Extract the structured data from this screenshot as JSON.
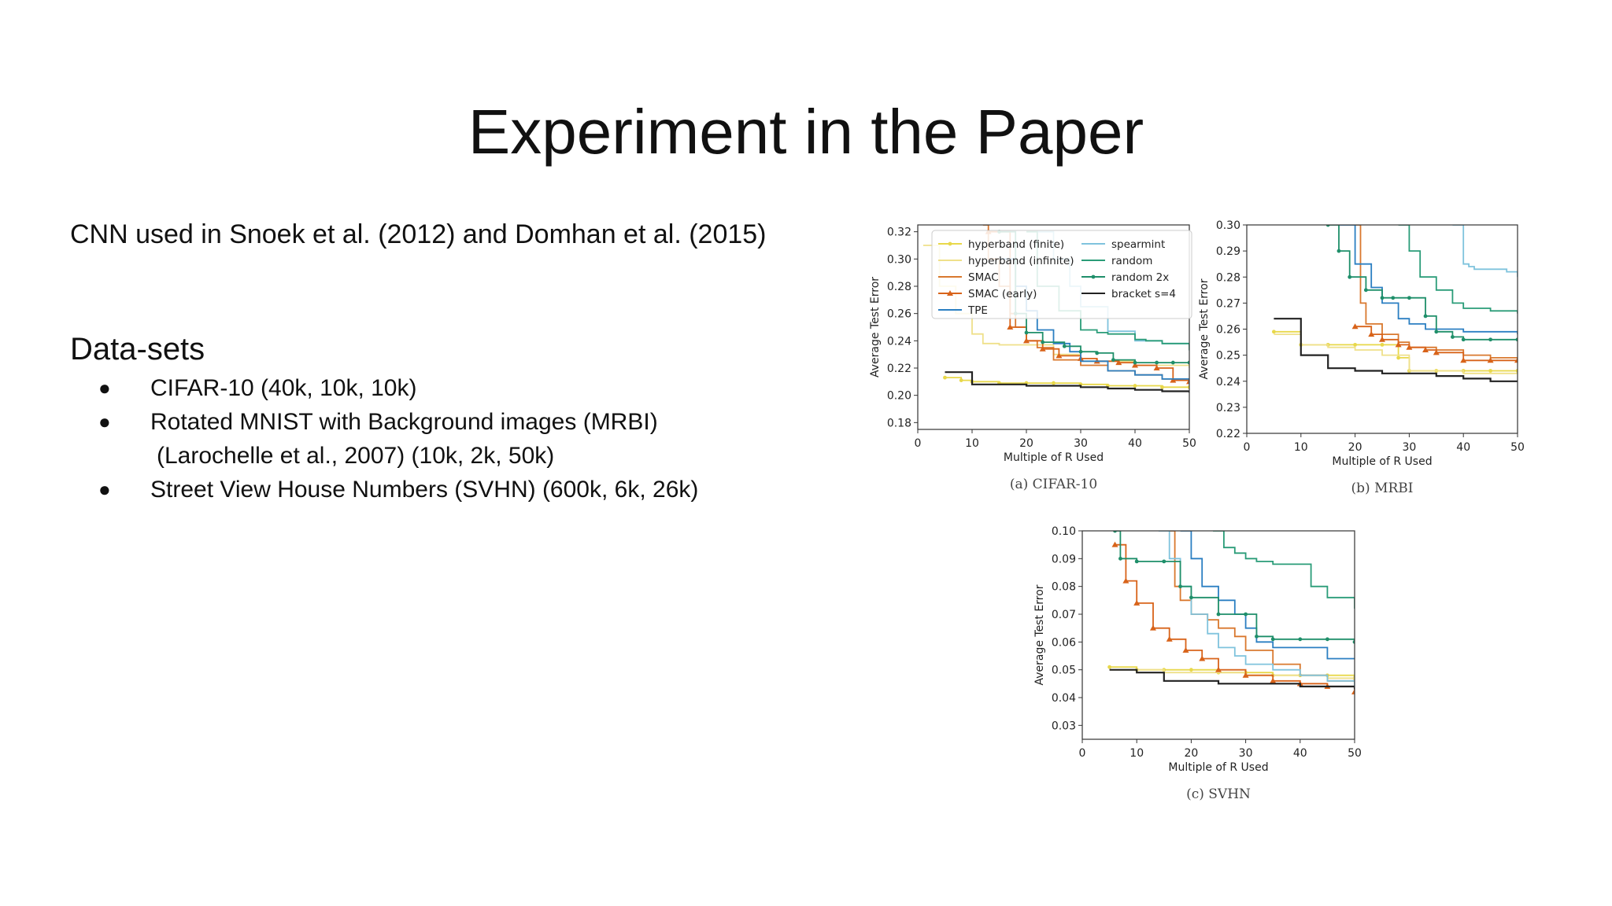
{
  "slide": {
    "title": "Experiment in the Paper",
    "subtitle": "CNN used in Snoek et al. (2012) and Domhan et al. (2015)",
    "datasets_heading": "Data-sets",
    "bullets": [
      {
        "text": "CIFAR-10 (40k, 10k, 10k)"
      },
      {
        "text": "Rotated MNIST with Background images (MRBI)",
        "continuation": "(Larochelle et al., 2007) (10k, 2k, 50k)"
      },
      {
        "text": "Street View House Numbers (SVHN) (600k, 6k, 26k)"
      }
    ]
  },
  "colors": {
    "hyperband_finite": "#e8d84a",
    "hyperband_infinite": "#efe08a",
    "SMAC": "#d9782e",
    "SMAC_early": "#d8631a",
    "TPE": "#2b7fc2",
    "spearmint": "#7fc3dd",
    "random": "#2a9c78",
    "random_2x": "#1f8f6a",
    "bracket": "#222222"
  },
  "chart_data": [
    {
      "type": "line",
      "caption": "(a) CIFAR-10",
      "xlabel": "Multiple of R Used",
      "ylabel": "Average Test Error",
      "xlim": [
        0,
        50
      ],
      "ylim": [
        0.175,
        0.325
      ],
      "xticks": [
        0,
        10,
        20,
        30,
        40,
        50
      ],
      "yticks": [
        0.18,
        0.2,
        0.22,
        0.24,
        0.26,
        0.28,
        0.3,
        0.32
      ],
      "ytick_decimals": 2,
      "legend": true,
      "legend_position": "top",
      "series": [
        {
          "name": "hyperband (finite)",
          "color_key": "hyperband_finite",
          "marker": "dot",
          "x": [
            5,
            8,
            10,
            15,
            20,
            25,
            30,
            35,
            40,
            45,
            50
          ],
          "y": [
            0.213,
            0.211,
            0.21,
            0.209,
            0.209,
            0.209,
            0.208,
            0.207,
            0.207,
            0.206,
            0.206
          ]
        },
        {
          "name": "hyperband (infinite)",
          "color_key": "hyperband_infinite",
          "x": [
            1,
            4,
            7,
            10,
            12,
            15,
            20,
            25,
            30,
            40,
            50
          ],
          "y": [
            0.31,
            0.28,
            0.26,
            0.245,
            0.238,
            0.237,
            0.237,
            0.23,
            0.225,
            0.222,
            0.22
          ]
        },
        {
          "name": "SMAC",
          "color_key": "SMAC",
          "x": [
            12,
            13,
            15,
            17,
            18,
            20,
            22,
            25,
            30,
            35,
            40,
            45,
            50
          ],
          "y": [
            0.325,
            0.3,
            0.28,
            0.26,
            0.25,
            0.24,
            0.235,
            0.226,
            0.222,
            0.218,
            0.215,
            0.212,
            0.21
          ]
        },
        {
          "name": "SMAC (early)",
          "color_key": "SMAC_early",
          "marker": "triangle",
          "x": [
            13,
            17,
            20,
            23,
            26,
            30,
            33,
            37,
            40,
            44,
            47,
            50
          ],
          "y": [
            0.32,
            0.25,
            0.24,
            0.234,
            0.229,
            0.227,
            0.225,
            0.224,
            0.222,
            0.22,
            0.211,
            0.21
          ]
        },
        {
          "name": "TPE",
          "color_key": "TPE",
          "x": [
            15,
            18,
            20,
            22,
            25,
            28,
            30,
            35,
            40,
            45,
            50
          ],
          "y": [
            0.3,
            0.28,
            0.262,
            0.248,
            0.238,
            0.232,
            0.225,
            0.218,
            0.215,
            0.212,
            0.208
          ]
        },
        {
          "name": "spearmint",
          "color_key": "spearmint",
          "x": [
            22,
            25,
            28,
            30,
            35,
            40,
            45,
            50
          ],
          "y": [
            0.32,
            0.3,
            0.28,
            0.265,
            0.247,
            0.24,
            0.238,
            0.236
          ]
        },
        {
          "name": "random",
          "color_key": "random",
          "x": [
            20,
            22,
            26,
            30,
            33,
            35,
            40,
            42,
            45,
            50
          ],
          "y": [
            0.32,
            0.28,
            0.262,
            0.248,
            0.246,
            0.245,
            0.241,
            0.24,
            0.238,
            0.233
          ]
        },
        {
          "name": "random 2x",
          "color_key": "random_2x",
          "marker": "dot",
          "x": [
            15,
            18,
            20,
            23,
            27,
            30,
            33,
            36,
            40,
            44,
            47,
            50
          ],
          "y": [
            0.32,
            0.26,
            0.246,
            0.239,
            0.236,
            0.232,
            0.231,
            0.226,
            0.224,
            0.224,
            0.224,
            0.224
          ]
        },
        {
          "name": "bracket s=4",
          "color_key": "bracket",
          "x": [
            5,
            10,
            15,
            20,
            25,
            30,
            35,
            40,
            45,
            50
          ],
          "y": [
            0.217,
            0.208,
            0.208,
            0.207,
            0.207,
            0.206,
            0.205,
            0.204,
            0.203,
            0.202
          ]
        }
      ]
    },
    {
      "type": "line",
      "caption": "(b) MRBI",
      "xlabel": "Multiple of R Used",
      "ylabel": "Average Test Error",
      "xlim": [
        0,
        50
      ],
      "ylim": [
        0.22,
        0.3
      ],
      "xticks": [
        0,
        10,
        20,
        30,
        40,
        50
      ],
      "yticks": [
        0.22,
        0.23,
        0.24,
        0.25,
        0.26,
        0.27,
        0.28,
        0.29,
        0.3
      ],
      "ytick_decimals": 2,
      "legend": false,
      "series": [
        {
          "name": "hyperband (finite)",
          "color_key": "hyperband_finite",
          "marker": "dot",
          "x": [
            5,
            10,
            15,
            20,
            25,
            28,
            30,
            35,
            40,
            45,
            50
          ],
          "y": [
            0.259,
            0.254,
            0.254,
            0.254,
            0.254,
            0.249,
            0.244,
            0.244,
            0.244,
            0.244,
            0.244
          ]
        },
        {
          "name": "hyperband (infinite)",
          "color_key": "hyperband_infinite",
          "x": [
            5,
            10,
            15,
            20,
            25,
            30,
            35,
            40,
            45,
            50
          ],
          "y": [
            0.258,
            0.254,
            0.253,
            0.252,
            0.25,
            0.244,
            0.244,
            0.243,
            0.243,
            0.243
          ]
        },
        {
          "name": "SMAC",
          "color_key": "SMAC",
          "x": [
            20,
            21,
            22,
            25,
            28,
            30,
            35,
            40,
            45,
            50
          ],
          "y": [
            0.3,
            0.27,
            0.262,
            0.258,
            0.255,
            0.253,
            0.252,
            0.25,
            0.249,
            0.249
          ]
        },
        {
          "name": "SMAC (early)",
          "color_key": "SMAC_early",
          "marker": "triangle",
          "x": [
            20,
            23,
            25,
            28,
            30,
            33,
            35,
            40,
            45,
            50
          ],
          "y": [
            0.261,
            0.258,
            0.256,
            0.254,
            0.253,
            0.252,
            0.251,
            0.248,
            0.248,
            0.248
          ]
        },
        {
          "name": "TPE",
          "color_key": "TPE",
          "x": [
            17,
            20,
            23,
            25,
            28,
            30,
            33,
            35,
            40,
            45,
            50
          ],
          "y": [
            0.3,
            0.285,
            0.276,
            0.27,
            0.264,
            0.262,
            0.26,
            0.26,
            0.259,
            0.259,
            0.258
          ]
        },
        {
          "name": "spearmint",
          "color_key": "spearmint",
          "x": [
            38,
            40,
            41,
            42,
            45,
            48,
            50
          ],
          "y": [
            0.3,
            0.285,
            0.284,
            0.283,
            0.283,
            0.282,
            0.28
          ]
        },
        {
          "name": "random",
          "color_key": "random",
          "x": [
            28,
            30,
            32,
            35,
            38,
            40,
            45,
            50
          ],
          "y": [
            0.3,
            0.29,
            0.28,
            0.275,
            0.27,
            0.268,
            0.267,
            0.266
          ]
        },
        {
          "name": "random 2x",
          "color_key": "random_2x",
          "marker": "dot",
          "x": [
            15,
            17,
            19,
            22,
            25,
            27,
            30,
            33,
            35,
            38,
            40,
            45,
            50
          ],
          "y": [
            0.3,
            0.29,
            0.28,
            0.275,
            0.272,
            0.272,
            0.272,
            0.265,
            0.259,
            0.257,
            0.256,
            0.256,
            0.256
          ]
        },
        {
          "name": "bracket s=4",
          "color_key": "bracket",
          "x": [
            5,
            10,
            15,
            20,
            25,
            30,
            35,
            40,
            45,
            50
          ],
          "y": [
            0.264,
            0.25,
            0.245,
            0.244,
            0.243,
            0.243,
            0.242,
            0.241,
            0.24,
            0.24
          ]
        }
      ]
    },
    {
      "type": "line",
      "caption": "(c) SVHN",
      "xlabel": "Multiple of R Used",
      "ylabel": "Average Test Error",
      "xlim": [
        0,
        50
      ],
      "ylim": [
        0.025,
        0.1
      ],
      "xticks": [
        0,
        10,
        20,
        30,
        40,
        50
      ],
      "yticks": [
        0.03,
        0.04,
        0.05,
        0.06,
        0.07,
        0.08,
        0.09,
        0.1
      ],
      "ytick_decimals": 2,
      "legend": false,
      "series": [
        {
          "name": "hyperband (finite)",
          "color_key": "hyperband_finite",
          "marker": "dot",
          "x": [
            5,
            10,
            15,
            20,
            25,
            30,
            35,
            40,
            45,
            50
          ],
          "y": [
            0.051,
            0.05,
            0.05,
            0.05,
            0.049,
            0.049,
            0.048,
            0.048,
            0.048,
            0.047
          ]
        },
        {
          "name": "hyperband (infinite)",
          "color_key": "hyperband_infinite",
          "x": [
            5,
            10,
            15,
            20,
            25,
            30,
            35,
            40,
            45,
            50
          ],
          "y": [
            0.05,
            0.05,
            0.049,
            0.049,
            0.049,
            0.048,
            0.048,
            0.048,
            0.047,
            0.047
          ]
        },
        {
          "name": "SMAC",
          "color_key": "SMAC",
          "x": [
            16,
            17,
            18,
            20,
            23,
            25,
            28,
            30,
            35,
            40,
            45,
            50
          ],
          "y": [
            0.1,
            0.08,
            0.075,
            0.07,
            0.068,
            0.065,
            0.062,
            0.057,
            0.052,
            0.048,
            0.046,
            0.045
          ]
        },
        {
          "name": "SMAC (early)",
          "color_key": "SMAC_early",
          "marker": "triangle",
          "x": [
            6,
            8,
            10,
            13,
            16,
            19,
            22,
            25,
            30,
            35,
            40,
            45,
            50
          ],
          "y": [
            0.095,
            0.082,
            0.074,
            0.065,
            0.061,
            0.057,
            0.054,
            0.05,
            0.048,
            0.046,
            0.045,
            0.044,
            0.042
          ]
        },
        {
          "name": "TPE",
          "color_key": "TPE",
          "x": [
            18,
            20,
            22,
            25,
            28,
            30,
            32,
            35,
            40,
            45,
            50
          ],
          "y": [
            0.1,
            0.09,
            0.08,
            0.075,
            0.07,
            0.065,
            0.06,
            0.058,
            0.058,
            0.054,
            0.054
          ]
        },
        {
          "name": "spearmint",
          "color_key": "spearmint",
          "x": [
            14,
            16,
            18,
            20,
            23,
            25,
            28,
            30,
            35,
            40,
            45,
            50
          ],
          "y": [
            0.1,
            0.09,
            0.08,
            0.07,
            0.063,
            0.058,
            0.055,
            0.052,
            0.05,
            0.048,
            0.046,
            0.044
          ]
        },
        {
          "name": "random",
          "color_key": "random",
          "x": [
            24,
            26,
            28,
            30,
            32,
            35,
            40,
            42,
            45,
            50
          ],
          "y": [
            0.1,
            0.094,
            0.092,
            0.09,
            0.089,
            0.088,
            0.088,
            0.08,
            0.076,
            0.072
          ]
        },
        {
          "name": "random 2x",
          "color_key": "random_2x",
          "marker": "dot",
          "x": [
            6,
            7,
            10,
            15,
            18,
            20,
            25,
            30,
            32,
            35,
            40,
            45,
            50
          ],
          "y": [
            0.1,
            0.09,
            0.089,
            0.089,
            0.08,
            0.076,
            0.07,
            0.07,
            0.062,
            0.061,
            0.061,
            0.061,
            0.06
          ]
        },
        {
          "name": "bracket s=4",
          "color_key": "bracket",
          "x": [
            5,
            10,
            15,
            20,
            25,
            30,
            35,
            40,
            45,
            50
          ],
          "y": [
            0.05,
            0.049,
            0.046,
            0.046,
            0.045,
            0.045,
            0.045,
            0.044,
            0.044,
            0.043
          ]
        }
      ]
    }
  ]
}
